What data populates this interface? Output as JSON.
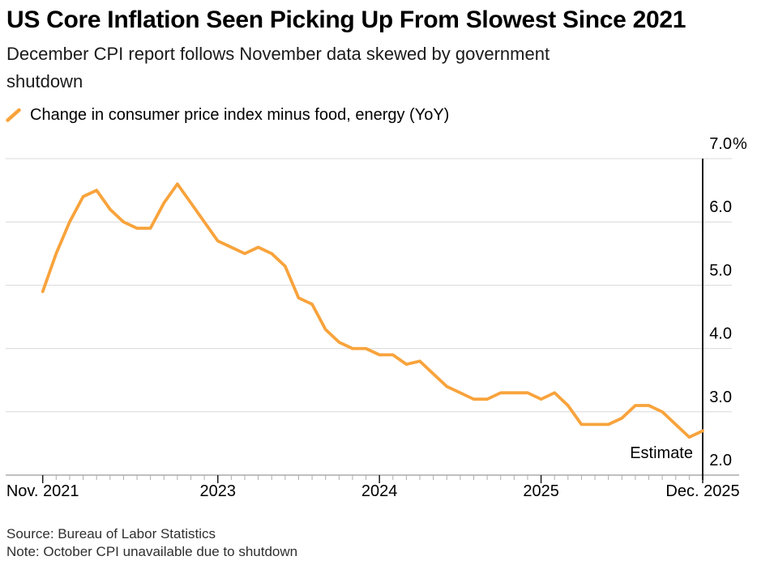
{
  "header": {
    "title": "US Core Inflation Seen Picking Up From Slowest Since 2021",
    "subtitle": "December CPI report follows November data skewed by government shutdown"
  },
  "legend": {
    "label": "Change in consumer price index minus food, energy (YoY)",
    "marker_color": "#F8A33C"
  },
  "footer": {
    "source": "Source: Bureau of Labor Statistics",
    "note": "Note: October CPI unavailable due to shutdown"
  },
  "chart_data": {
    "type": "line",
    "title": "US Core Inflation Seen Picking Up From Slowest Since 2021",
    "subtitle": "December CPI report follows November data skewed by government shutdown",
    "unit": "%",
    "grid": "horizontal",
    "legend_position": "top-left",
    "x": [
      "Nov 2021",
      "Dec 2021",
      "Jan 2022",
      "Feb 2022",
      "Mar 2022",
      "Apr 2022",
      "May 2022",
      "Jun 2022",
      "Jul 2022",
      "Aug 2022",
      "Sep 2022",
      "Oct 2022",
      "Nov 2022",
      "Dec 2022",
      "Jan 2023",
      "Feb 2023",
      "Mar 2023",
      "Apr 2023",
      "May 2023",
      "Jun 2023",
      "Jul 2023",
      "Aug 2023",
      "Sep 2023",
      "Oct 2023",
      "Nov 2023",
      "Dec 2023",
      "Jan 2024",
      "Feb 2024",
      "Mar 2024",
      "Apr 2024",
      "May 2024",
      "Jun 2024",
      "Jul 2024",
      "Aug 2024",
      "Sep 2024",
      "Oct 2024",
      "Nov 2024",
      "Dec 2024",
      "Jan 2025",
      "Feb 2025",
      "Mar 2025",
      "Apr 2025",
      "May 2025",
      "Jun 2025",
      "Jul 2025",
      "Aug 2025",
      "Sep 2025",
      "Oct 2025",
      "Nov 2025",
      "Dec 2025"
    ],
    "series": [
      {
        "name": "Change in consumer price index minus food, energy (YoY)",
        "color": "#F8A33C",
        "values": [
          4.9,
          5.5,
          6.0,
          6.4,
          6.5,
          6.2,
          6.0,
          5.9,
          5.9,
          6.3,
          6.6,
          6.3,
          6.0,
          5.7,
          5.6,
          5.5,
          5.6,
          5.5,
          5.3,
          4.8,
          4.7,
          4.3,
          4.1,
          4.0,
          4.0,
          3.9,
          3.9,
          3.75,
          3.8,
          3.6,
          3.4,
          3.3,
          3.2,
          3.2,
          3.3,
          3.3,
          3.3,
          3.2,
          3.3,
          3.1,
          2.8,
          2.8,
          2.8,
          2.9,
          3.1,
          3.1,
          3.0,
          null,
          2.6,
          2.7
        ]
      }
    ],
    "missing_data_note": "Oct 2025 unavailable due to shutdown",
    "ylim": [
      2.0,
      7.0
    ],
    "y_ticks": [
      {
        "value": 7.0,
        "label": "7.0",
        "suffix": "%"
      },
      {
        "value": 6.0,
        "label": "6.0"
      },
      {
        "value": 5.0,
        "label": "5.0"
      },
      {
        "value": 4.0,
        "label": "4.0"
      },
      {
        "value": 3.0,
        "label": "3.0"
      },
      {
        "value": 2.0,
        "label": "2.0"
      }
    ],
    "x_ticks_major": [
      {
        "index": 0,
        "label": "Nov. 2021"
      },
      {
        "index": 13,
        "label": "2023"
      },
      {
        "index": 25,
        "label": "2024"
      },
      {
        "index": 37,
        "label": "2025"
      },
      {
        "index": 49,
        "label": "Dec. 2025"
      }
    ],
    "minor_ticks": "monthly",
    "estimate": {
      "index": 49,
      "label": "Estimate",
      "value": 2.7
    },
    "colors": {
      "line": "#F8A33C",
      "gridline": "#D9D9D9",
      "axis": "#9B9B9B",
      "minor_tick": "#ADADAD",
      "major_tick": "#1A1A1A",
      "estimate_divider": "#1E1E1E",
      "label_text": "#000000"
    }
  }
}
